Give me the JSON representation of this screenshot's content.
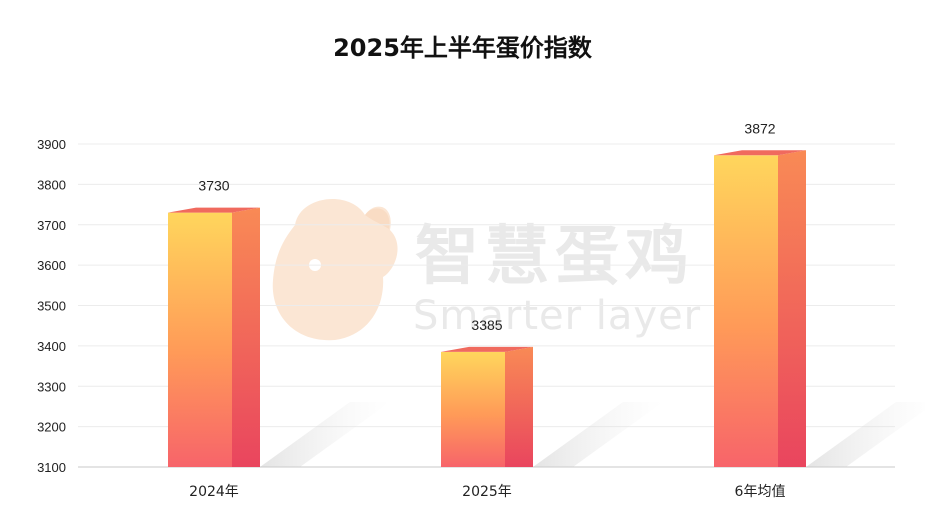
{
  "chart_data": {
    "type": "bar",
    "title": "2025年上半年蛋价指数",
    "categories": [
      "2024年",
      "2025年",
      "6年均值"
    ],
    "values": [
      3730,
      3385,
      3872
    ],
    "data_labels": [
      "3730",
      "3385",
      "3872"
    ],
    "ylim": [
      3100,
      3900
    ],
    "yticks": [
      "3100",
      "3200",
      "3300",
      "3400",
      "3500",
      "3600",
      "3700",
      "3800",
      "3900"
    ],
    "xlabel": "",
    "ylabel": "",
    "grid": true,
    "bar_gradient": [
      "#ffd45a",
      "#ff8a55",
      "#f0506a"
    ]
  },
  "watermark": {
    "text_cn": "智慧蛋鸡",
    "text_en": "Smarter layer",
    "logo": "chicken-head-logo"
  }
}
